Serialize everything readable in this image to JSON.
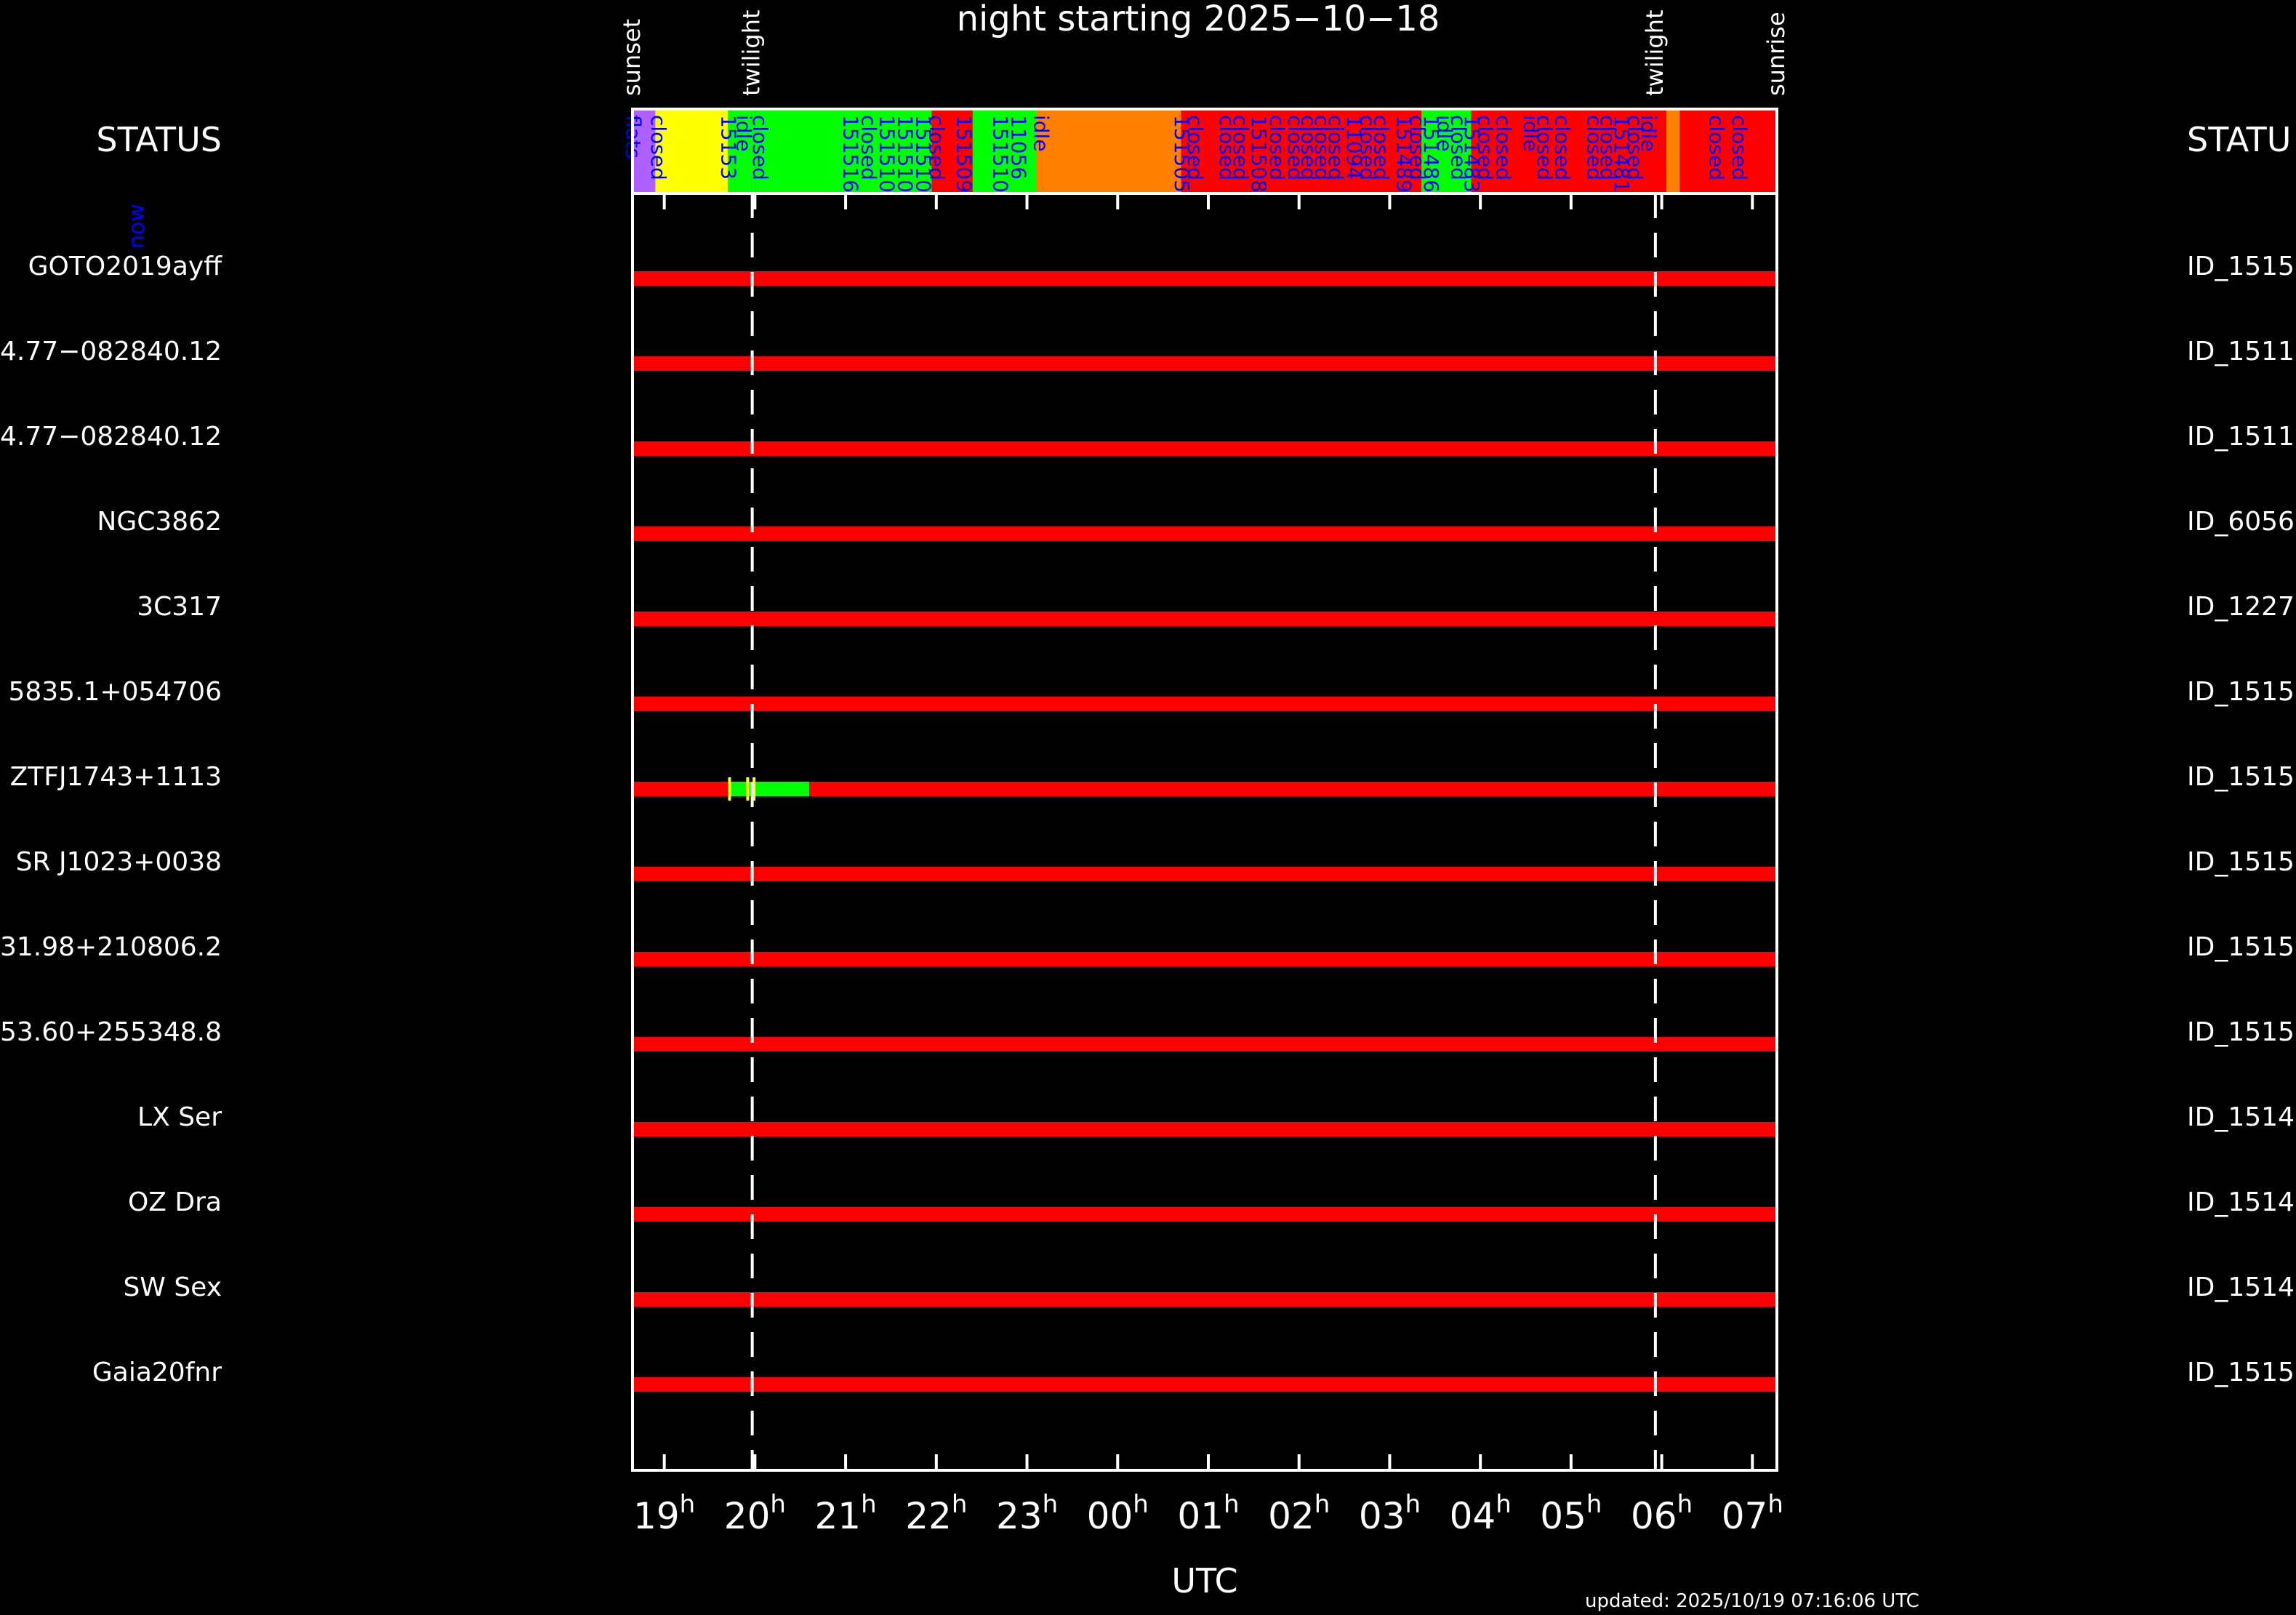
{
  "title": "night starting 2025−10−18",
  "updated": "updated: 2025/10/19 07:16:06 UTC",
  "left_header": "STATUS",
  "right_header": "STATU",
  "now_label": "now",
  "colors": {
    "background": "#000000",
    "frame": "#ffffff",
    "bar_red": "#ff0000",
    "green": "#00ff00",
    "yellow": "#ffff00",
    "orange": "#ff8000",
    "blue_text": "#0000ff",
    "magenta": "#b060ff"
  },
  "chart_data": {
    "type": "timeline",
    "title": "night starting 2025−10−18",
    "xlabel": "UTC",
    "x_unit": "hours UTC (values > 24 are after midnight)",
    "xlim": [
      18.65,
      31.27
    ],
    "x_ticks": [
      {
        "value": 19,
        "label": "19",
        "sup": "h"
      },
      {
        "value": 20,
        "label": "20",
        "sup": "h"
      },
      {
        "value": 21,
        "label": "21",
        "sup": "h"
      },
      {
        "value": 22,
        "label": "22",
        "sup": "h"
      },
      {
        "value": 23,
        "label": "23",
        "sup": "h"
      },
      {
        "value": 24,
        "label": "00",
        "sup": "h"
      },
      {
        "value": 25,
        "label": "01",
        "sup": "h"
      },
      {
        "value": 26,
        "label": "02",
        "sup": "h"
      },
      {
        "value": 27,
        "label": "03",
        "sup": "h"
      },
      {
        "value": 28,
        "label": "04",
        "sup": "h"
      },
      {
        "value": 29,
        "label": "05",
        "sup": "h"
      },
      {
        "value": 30,
        "label": "06",
        "sup": "h"
      },
      {
        "value": 31,
        "label": "07",
        "sup": "h"
      }
    ],
    "events": [
      {
        "label": "sunset",
        "time": 18.65,
        "line": false
      },
      {
        "label": "twilight",
        "time": 19.97,
        "line": true
      },
      {
        "label": "twilight",
        "time": 29.93,
        "line": true
      },
      {
        "label": "sunrise",
        "time": 31.27,
        "line": false
      }
    ],
    "status_blocks": [
      {
        "start": 18.65,
        "end": 18.9,
        "color": "#b060ff"
      },
      {
        "start": 18.9,
        "end": 19.7,
        "color": "#ffff00"
      },
      {
        "start": 19.7,
        "end": 20.0,
        "color": "#00ff00"
      },
      {
        "start": 20.0,
        "end": 21.95,
        "color": "#00ff00"
      },
      {
        "start": 21.95,
        "end": 22.4,
        "color": "#ff0000"
      },
      {
        "start": 22.4,
        "end": 23.1,
        "color": "#00ff00"
      },
      {
        "start": 23.1,
        "end": 24.7,
        "color": "#ff8000"
      },
      {
        "start": 24.7,
        "end": 27.35,
        "color": "#ff0000"
      },
      {
        "start": 27.35,
        "end": 27.9,
        "color": "#00ff00"
      },
      {
        "start": 27.9,
        "end": 30.05,
        "color": "#ff0000"
      },
      {
        "start": 30.05,
        "end": 30.2,
        "color": "#ff8000"
      },
      {
        "start": 30.2,
        "end": 31.27,
        "color": "#ff0000"
      }
    ],
    "status_labels": [
      {
        "text": "flats",
        "time": 18.5,
        "color": "#0000ff"
      },
      {
        "text": "closed",
        "time": 18.78,
        "color": "#0000ff"
      },
      {
        "text": "15153",
        "time": 19.55,
        "color": "#0000ff"
      },
      {
        "text": "idle",
        "time": 19.72,
        "color": "#0000ff"
      },
      {
        "text": "closed",
        "time": 19.9,
        "color": "#0000ff"
      },
      {
        "text": "151516",
        "time": 20.9,
        "color": "#0000ff"
      },
      {
        "text": "closed",
        "time": 21.1,
        "color": "#0000ff"
      },
      {
        "text": "151510",
        "time": 21.3,
        "color": "#0000ff"
      },
      {
        "text": "151510",
        "time": 21.5,
        "color": "#0000ff"
      },
      {
        "text": "151510",
        "time": 21.7,
        "color": "#0000ff"
      },
      {
        "text": "closed",
        "time": 21.85,
        "color": "#0000ff"
      },
      {
        "text": "151509",
        "time": 22.15,
        "color": "#0000ff"
      },
      {
        "text": "151510",
        "time": 22.55,
        "color": "#0000ff"
      },
      {
        "text": "11056",
        "time": 22.75,
        "color": "#0000ff"
      },
      {
        "text": "idle",
        "time": 23.0,
        "color": "#0000ff"
      },
      {
        "text": "151505",
        "time": 24.55,
        "color": "#0000ff"
      },
      {
        "text": "closed",
        "time": 24.7,
        "color": "#0000ff"
      },
      {
        "text": "closed",
        "time": 25.05,
        "color": "#0000ff"
      },
      {
        "text": "closed",
        "time": 25.2,
        "color": "#0000ff"
      },
      {
        "text": "151508",
        "time": 25.4,
        "color": "#0000ff"
      },
      {
        "text": "closed",
        "time": 25.6,
        "color": "#0000ff"
      },
      {
        "text": "closed",
        "time": 25.8,
        "color": "#0000ff"
      },
      {
        "text": "closed",
        "time": 25.95,
        "color": "#0000ff"
      },
      {
        "text": "closed",
        "time": 26.1,
        "color": "#0000ff"
      },
      {
        "text": "closed",
        "time": 26.25,
        "color": "#0000ff"
      },
      {
        "text": "11094",
        "time": 26.45,
        "color": "#0000ff"
      },
      {
        "text": "closed",
        "time": 26.6,
        "color": "#0000ff"
      },
      {
        "text": "closed",
        "time": 26.75,
        "color": "#0000ff"
      },
      {
        "text": "151489",
        "time": 27.0,
        "color": "#0000ff"
      },
      {
        "text": "closed",
        "time": 27.15,
        "color": "#0000ff"
      },
      {
        "text": "151486",
        "time": 27.3,
        "color": "#0000ff"
      },
      {
        "text": "idle",
        "time": 27.45,
        "color": "#0000ff"
      },
      {
        "text": "closed",
        "time": 27.6,
        "color": "#0000ff"
      },
      {
        "text": "151483",
        "time": 27.75,
        "color": "#0000ff"
      },
      {
        "text": "closed",
        "time": 27.9,
        "color": "#0000ff"
      },
      {
        "text": "closed",
        "time": 28.1,
        "color": "#0000ff"
      },
      {
        "text": "idle",
        "time": 28.4,
        "color": "#0000ff"
      },
      {
        "text": "closed",
        "time": 28.55,
        "color": "#0000ff"
      },
      {
        "text": "closed",
        "time": 28.75,
        "color": "#0000ff"
      },
      {
        "text": "closed",
        "time": 29.1,
        "color": "#0000ff"
      },
      {
        "text": "closed",
        "time": 29.25,
        "color": "#0000ff"
      },
      {
        "text": "151481",
        "time": 29.4,
        "color": "#0000ff"
      },
      {
        "text": "closed",
        "time": 29.55,
        "color": "#0000ff"
      },
      {
        "text": "idle",
        "time": 29.7,
        "color": "#0000ff"
      },
      {
        "text": "closed",
        "time": 30.45,
        "color": "#0000ff"
      },
      {
        "text": "closed",
        "time": 30.7,
        "color": "#0000ff"
      }
    ],
    "targets": [
      {
        "name": "GOTO2019ayff",
        "id": "ID_1515",
        "segments": [
          {
            "start": 18.65,
            "end": 31.27,
            "color": "#ff0000"
          }
        ]
      },
      {
        "name": "4.77−082840.12",
        "id": "ID_1511",
        "segments": [
          {
            "start": 18.65,
            "end": 31.27,
            "color": "#ff0000"
          }
        ]
      },
      {
        "name": "4.77−082840.12",
        "id": "ID_1511",
        "segments": [
          {
            "start": 18.65,
            "end": 31.27,
            "color": "#ff0000"
          }
        ]
      },
      {
        "name": "NGC3862",
        "id": "ID_6056",
        "segments": [
          {
            "start": 18.65,
            "end": 31.27,
            "color": "#ff0000"
          }
        ]
      },
      {
        "name": "3C317",
        "id": "ID_1227",
        "segments": [
          {
            "start": 18.65,
            "end": 31.27,
            "color": "#ff0000"
          }
        ]
      },
      {
        "name": "5835.1+054706",
        "id": "ID_1515",
        "segments": [
          {
            "start": 18.65,
            "end": 31.27,
            "color": "#ff0000"
          }
        ]
      },
      {
        "name": "ZTFJ1743+1113",
        "id": "ID_1515",
        "segments": [
          {
            "start": 18.65,
            "end": 19.72,
            "color": "#ff0000"
          },
          {
            "start": 19.72,
            "end": 20.6,
            "color": "#00ff00"
          },
          {
            "start": 20.6,
            "end": 31.27,
            "color": "#ff0000"
          }
        ]
      },
      {
        "name": "SR J1023+0038",
        "id": "ID_1515",
        "segments": [
          {
            "start": 18.65,
            "end": 31.27,
            "color": "#ff0000"
          }
        ]
      },
      {
        "name": "31.98+210806.2",
        "id": "ID_1515",
        "segments": [
          {
            "start": 18.65,
            "end": 31.27,
            "color": "#ff0000"
          }
        ]
      },
      {
        "name": "53.60+255348.8",
        "id": "ID_1515",
        "segments": [
          {
            "start": 18.65,
            "end": 31.27,
            "color": "#ff0000"
          }
        ]
      },
      {
        "name": "LX Ser",
        "id": "ID_1514",
        "segments": [
          {
            "start": 18.65,
            "end": 31.27,
            "color": "#ff0000"
          }
        ]
      },
      {
        "name": "OZ Dra",
        "id": "ID_1514",
        "segments": [
          {
            "start": 18.65,
            "end": 31.27,
            "color": "#ff0000"
          }
        ]
      },
      {
        "name": "SW Sex",
        "id": "ID_1514",
        "segments": [
          {
            "start": 18.65,
            "end": 31.27,
            "color": "#ff0000"
          }
        ]
      },
      {
        "name": "Gaia20fnr",
        "id": "ID_1515",
        "segments": [
          {
            "start": 18.65,
            "end": 31.27,
            "color": "#ff0000"
          }
        ]
      }
    ]
  }
}
